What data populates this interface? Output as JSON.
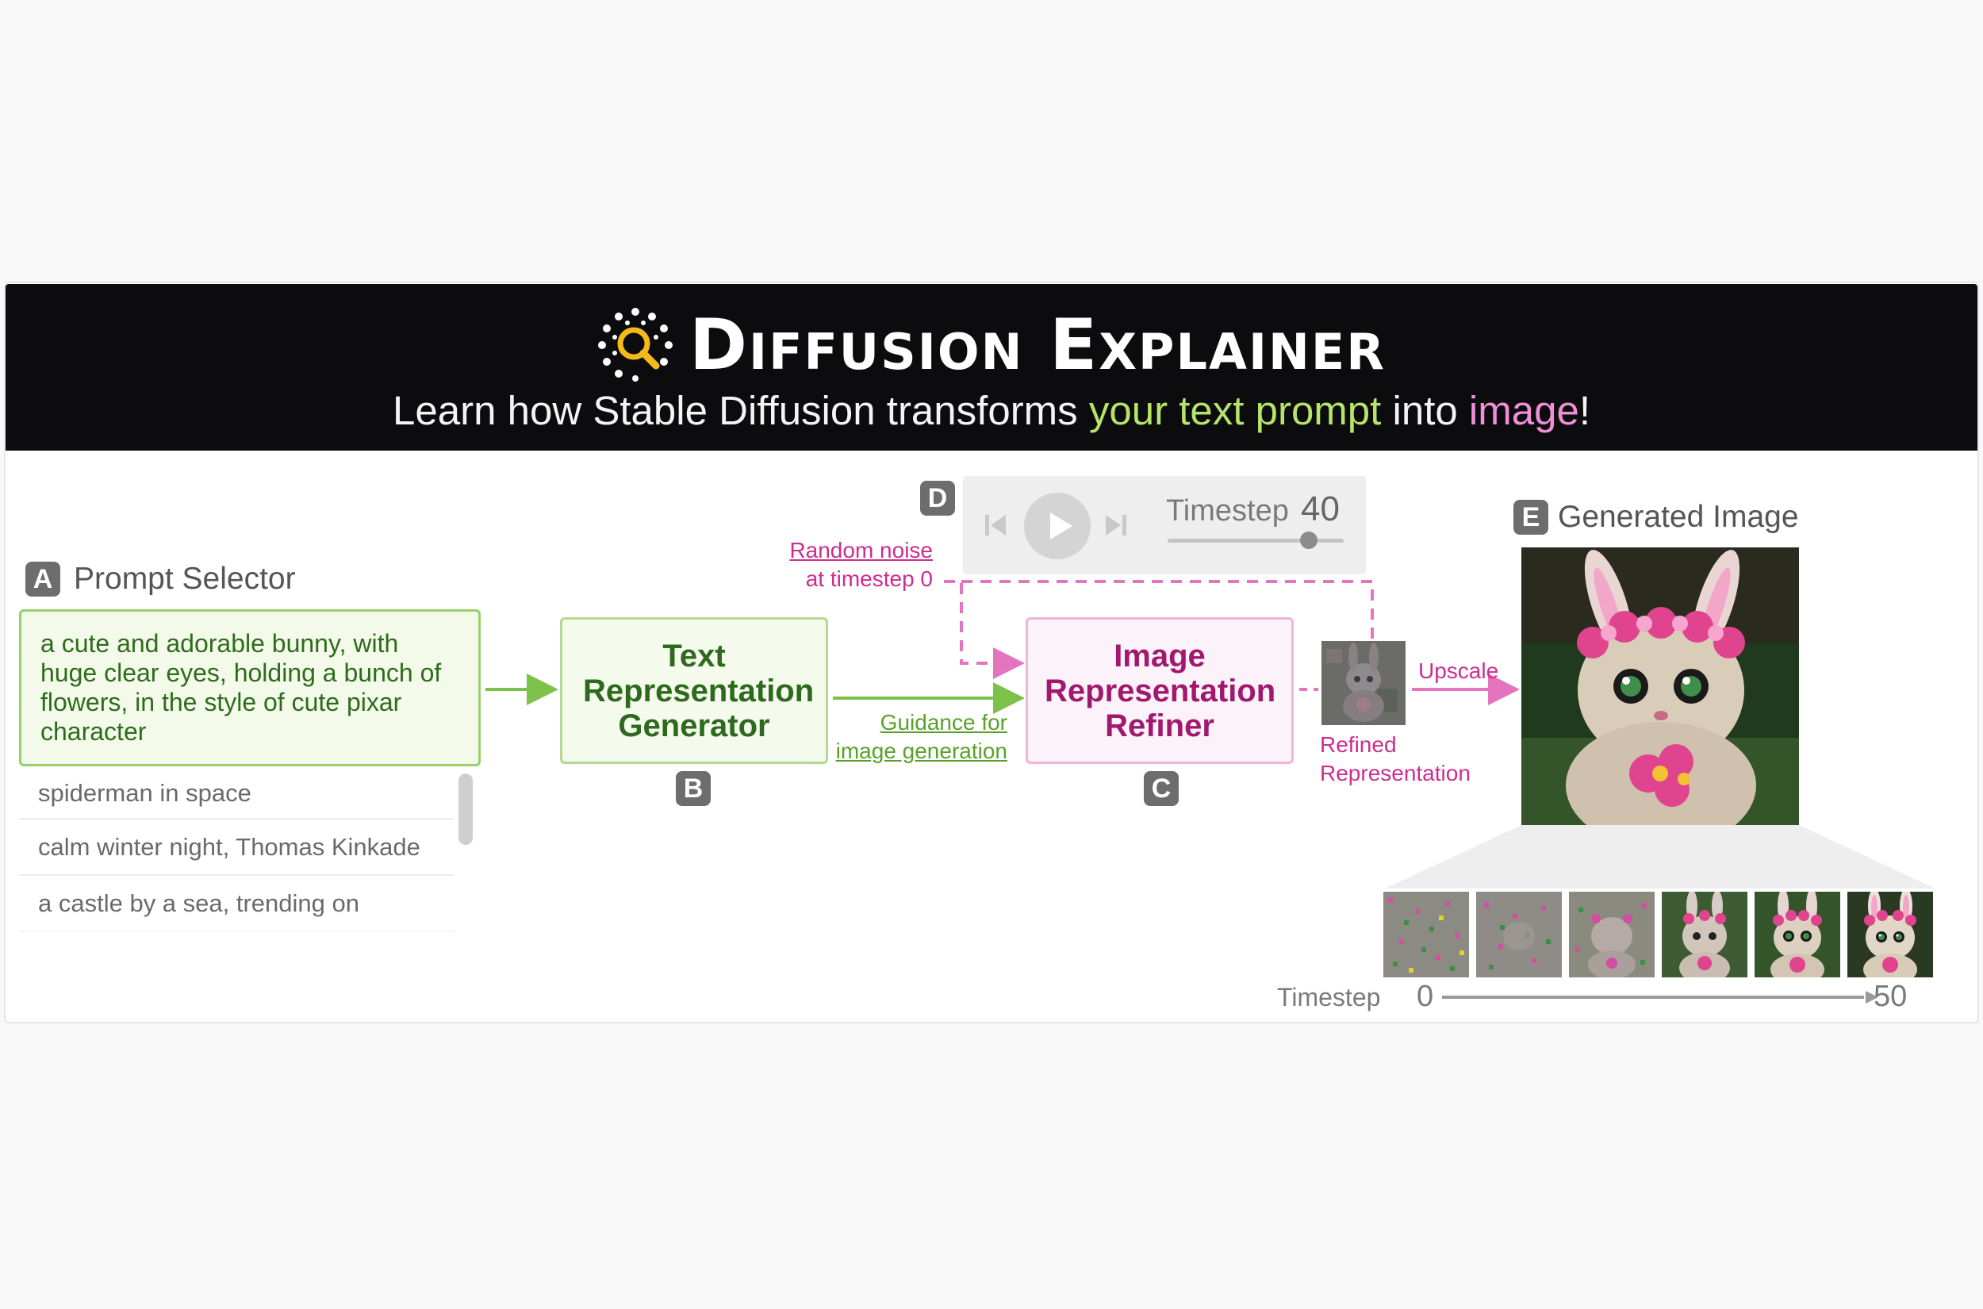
{
  "header": {
    "title": "Diffusion Explainer",
    "subtitle_prefix": "Learn how Stable Diffusion transforms ",
    "subtitle_highlight_1": "your text prompt",
    "subtitle_middle": " into ",
    "subtitle_highlight_2": "image",
    "subtitle_suffix": "!",
    "logo_icon": "magnifier-dots-icon"
  },
  "sections": {
    "prompt_selector": {
      "badge": "A",
      "label": "Prompt Selector"
    },
    "text_generator": {
      "badge": "B",
      "label": "Text Representation Generator"
    },
    "image_refiner": {
      "badge": "C",
      "label": "Image Representation Refiner"
    },
    "player": {
      "badge": "D"
    },
    "generated_image": {
      "badge": "E",
      "label": "Generated Image"
    }
  },
  "prompts": {
    "selected": "a cute and adorable bunny, with huge clear eyes, holding a bunch of flowers, in the style of cute pixar character",
    "options": [
      "spiderman in space",
      "calm winter night, Thomas Kinkade",
      "a castle by a sea, trending on"
    ]
  },
  "flow_labels": {
    "random_noise_line1": "Random noise",
    "random_noise_line2": "at timestep 0",
    "guidance_line1": "Guidance for",
    "guidance_line2": "image generation",
    "refined_line1": "Refined",
    "refined_line2": "Representation",
    "upscale": "Upscale"
  },
  "player": {
    "timestep_label": "Timestep",
    "timestep_value": "40",
    "timestep_fraction": 0.8,
    "icons": [
      "skip-back-icon",
      "play-icon",
      "skip-forward-icon"
    ]
  },
  "timeline": {
    "label": "Timestep",
    "start": "0",
    "end": "50",
    "thumbnail_count": 6
  },
  "colors": {
    "green_accent": "#98d16a",
    "green_text": "#2d6a1d",
    "pink_accent": "#efb3dc",
    "pink_text": "#a0196e",
    "header_bg": "#0c0c0e"
  }
}
